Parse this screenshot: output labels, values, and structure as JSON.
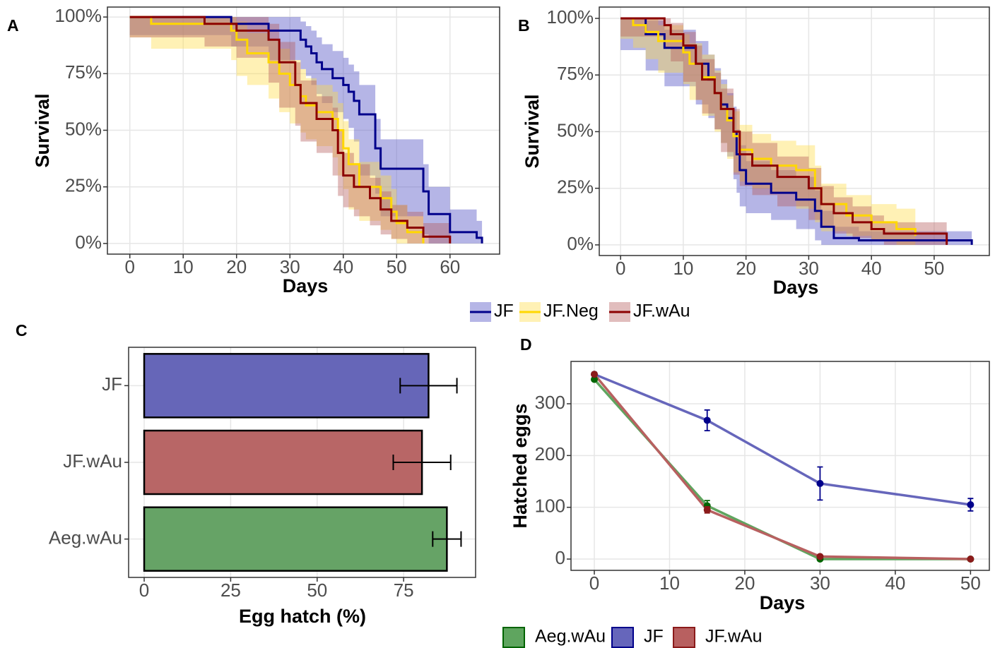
{
  "chart_data": [
    {
      "type": "step",
      "panel_label": "A",
      "x_label": "Days",
      "y_label": "Survival",
      "xlim": [
        -4.2,
        69.3
      ],
      "xticks": [
        0,
        10,
        20,
        30,
        40,
        50,
        60
      ],
      "ylim": [
        -4.7,
        104.4
      ],
      "yticks": [
        {
          "value": 0,
          "label": "0%"
        },
        {
          "value": 25,
          "label": "25%"
        },
        {
          "value": 50,
          "label": "50%"
        },
        {
          "value": 75,
          "label": "75%"
        },
        {
          "value": 100,
          "label": "100%"
        }
      ],
      "grid": true,
      "series": [
        {
          "name": "JF",
          "color": "#00008b",
          "band_color": "rgba(90,90,200,0.45)",
          "x": [
            0,
            19,
            26,
            32,
            33,
            34,
            35,
            36,
            38,
            40,
            41,
            42,
            43,
            46,
            47,
            55,
            56,
            60,
            65,
            66
          ],
          "values": [
            100,
            97,
            94,
            90,
            87,
            84,
            80,
            77,
            73,
            70,
            67,
            63,
            57,
            42,
            33,
            23,
            13,
            5,
            2.5,
            0
          ],
          "lower": [
            100,
            92,
            87,
            81,
            77,
            74,
            70,
            66,
            62,
            58,
            55,
            51,
            45,
            30,
            22,
            12,
            4,
            0,
            0,
            0
          ],
          "upper": [
            100,
            100,
            100,
            98,
            96,
            94,
            91,
            88,
            85,
            82,
            79,
            76,
            70,
            55,
            46,
            35,
            25,
            15,
            10,
            5
          ]
        },
        {
          "name": "JF.Neg",
          "color": "#ffd700",
          "band_color": "rgba(255,220,70,0.4)",
          "x": [
            0,
            4,
            19,
            20,
            22,
            26,
            28,
            30,
            32,
            33,
            35,
            38,
            39,
            40,
            41,
            43,
            47,
            49,
            50,
            52,
            55
          ],
          "values": [
            100,
            97,
            94,
            90,
            84,
            80,
            75,
            70,
            65,
            61,
            58,
            55,
            50,
            42,
            35,
            25,
            20,
            14,
            9,
            5,
            0
          ],
          "lower": [
            100,
            91,
            86,
            81,
            74,
            70,
            64,
            58,
            53,
            49,
            46,
            43,
            38,
            30,
            24,
            15,
            10,
            6,
            2,
            0,
            0
          ],
          "upper": [
            100,
            100,
            100,
            98,
            93,
            90,
            86,
            81,
            77,
            73,
            70,
            67,
            62,
            54,
            46,
            36,
            30,
            24,
            17,
            12,
            5
          ]
        },
        {
          "name": "JF.wAu",
          "color": "#8b0000",
          "band_color": "rgba(180,90,90,0.4)",
          "x": [
            0,
            14,
            20,
            26,
            28,
            31,
            32,
            35,
            38,
            39,
            40,
            42,
            45,
            47,
            49,
            52,
            55,
            60
          ],
          "values": [
            100,
            97,
            94,
            90,
            80,
            70,
            62,
            55,
            50,
            40,
            30,
            25,
            20,
            15,
            10,
            7,
            3,
            0
          ],
          "lower": [
            100,
            91,
            87,
            82,
            71,
            60,
            52,
            45,
            40,
            30,
            21,
            16,
            12,
            8,
            4,
            2,
            0,
            0
          ],
          "upper": [
            100,
            100,
            100,
            97,
            89,
            80,
            72,
            65,
            60,
            50,
            40,
            35,
            29,
            23,
            17,
            14,
            9,
            4
          ]
        }
      ]
    },
    {
      "type": "step",
      "panel_label": "B",
      "x_label": "Days",
      "y_label": "Survival",
      "xlim": [
        -3.4,
        58.8
      ],
      "xticks": [
        0,
        10,
        20,
        30,
        40,
        50
      ],
      "ylim": [
        -4.7,
        105
      ],
      "yticks": [
        {
          "value": 0,
          "label": "0%"
        },
        {
          "value": 25,
          "label": "25%"
        },
        {
          "value": 50,
          "label": "50%"
        },
        {
          "value": 75,
          "label": "75%"
        },
        {
          "value": 100,
          "label": "100%"
        }
      ],
      "grid": true,
      "series": [
        {
          "name": "JF",
          "color": "#00008b",
          "band_color": "rgba(90,90,200,0.45)",
          "x": [
            0,
            4,
            7,
            12,
            14,
            15,
            16,
            17,
            18,
            18.5,
            19,
            20,
            24,
            28,
            31,
            32,
            34,
            38,
            56
          ],
          "values": [
            100,
            93,
            87,
            80,
            73,
            67,
            62,
            56,
            50,
            40,
            33,
            27,
            23,
            20,
            15,
            8,
            3,
            2,
            0
          ],
          "lower": [
            100,
            86,
            77,
            70,
            62,
            56,
            51,
            45,
            39,
            29,
            23,
            17,
            14,
            11,
            7,
            2,
            0,
            0,
            0
          ],
          "upper": [
            100,
            99,
            95,
            90,
            84,
            78,
            73,
            67,
            61,
            51,
            44,
            37,
            33,
            30,
            24,
            15,
            8,
            6,
            3
          ]
        },
        {
          "name": "JF.Neg",
          "color": "#ffd700",
          "band_color": "rgba(255,220,70,0.4)",
          "x": [
            0,
            2,
            4,
            6,
            10,
            11,
            13,
            15,
            16,
            17,
            18,
            19,
            21,
            24,
            28,
            31,
            32,
            36,
            40,
            44,
            47
          ],
          "values": [
            100,
            97,
            94,
            90,
            85,
            80,
            74,
            67,
            60,
            55,
            48,
            42,
            38,
            35,
            33,
            25,
            18,
            13,
            10,
            7,
            4
          ],
          "lower": [
            100,
            91,
            87,
            82,
            76,
            71,
            64,
            57,
            50,
            45,
            38,
            32,
            28,
            25,
            23,
            16,
            10,
            6,
            4,
            2,
            0
          ],
          "upper": [
            100,
            100,
            100,
            97,
            93,
            89,
            84,
            77,
            71,
            66,
            59,
            53,
            49,
            46,
            44,
            35,
            27,
            22,
            18,
            16,
            12
          ]
        },
        {
          "name": "JF.wAu",
          "color": "#8b0000",
          "band_color": "rgba(180,90,90,0.4)",
          "x": [
            0,
            7,
            8,
            10,
            12,
            13,
            15,
            16,
            18,
            19,
            21,
            25,
            30,
            32,
            34,
            37,
            40,
            42,
            52
          ],
          "values": [
            100,
            97,
            93,
            88,
            80,
            73,
            67,
            60,
            50,
            40,
            35,
            30,
            25,
            18,
            14,
            10,
            7,
            5,
            0
          ],
          "lower": [
            100,
            92,
            87,
            81,
            72,
            64,
            58,
            51,
            41,
            31,
            26,
            22,
            17,
            11,
            8,
            5,
            3,
            2,
            0
          ],
          "upper": [
            100,
            100,
            98,
            94,
            88,
            82,
            76,
            69,
            60,
            50,
            45,
            39,
            34,
            26,
            21,
            17,
            13,
            10,
            4
          ]
        }
      ]
    },
    {
      "type": "hbar",
      "panel_label": "C",
      "x_label": "Egg hatch (%)",
      "xlim": [
        -4.5,
        95.8
      ],
      "xticks": [
        0,
        25,
        50,
        75
      ],
      "grid": true,
      "categories": [
        "JF",
        "JF.wAu",
        "Aeg.wAu"
      ],
      "values": [
        82.2,
        80.3,
        87.5
      ],
      "errors": [
        8.2,
        8.3,
        4.1
      ],
      "colors": [
        "#6666b8",
        "#b86666",
        "#66a366"
      ]
    },
    {
      "type": "line",
      "panel_label": "D",
      "x_label": "Days",
      "y_label": "Hatched eggs",
      "xlim": [
        -3.1,
        52.5
      ],
      "xticks": [
        0,
        10,
        20,
        30,
        40,
        50
      ],
      "ylim": [
        -21.8,
        381.8
      ],
      "yticks": [
        0,
        100,
        200,
        300
      ],
      "grid": true,
      "x": [
        0,
        15,
        30,
        50
      ],
      "series": [
        {
          "name": "Aeg.wAu",
          "color": "#5fa55f",
          "point_color": "#006400",
          "values": [
            347,
            103,
            0,
            0
          ],
          "errors": [
            0,
            10,
            0,
            0
          ]
        },
        {
          "name": "JF",
          "color": "#6666bb",
          "point_color": "#00008b",
          "values": [
            357,
            268,
            146,
            105
          ],
          "errors": [
            0,
            20,
            32,
            12
          ]
        },
        {
          "name": "JF.wAu",
          "color": "#b86060",
          "point_color": "#8b1a1a",
          "values": [
            357,
            95,
            5,
            0
          ],
          "errors": [
            0,
            6,
            0,
            0
          ]
        }
      ]
    }
  ]
}
